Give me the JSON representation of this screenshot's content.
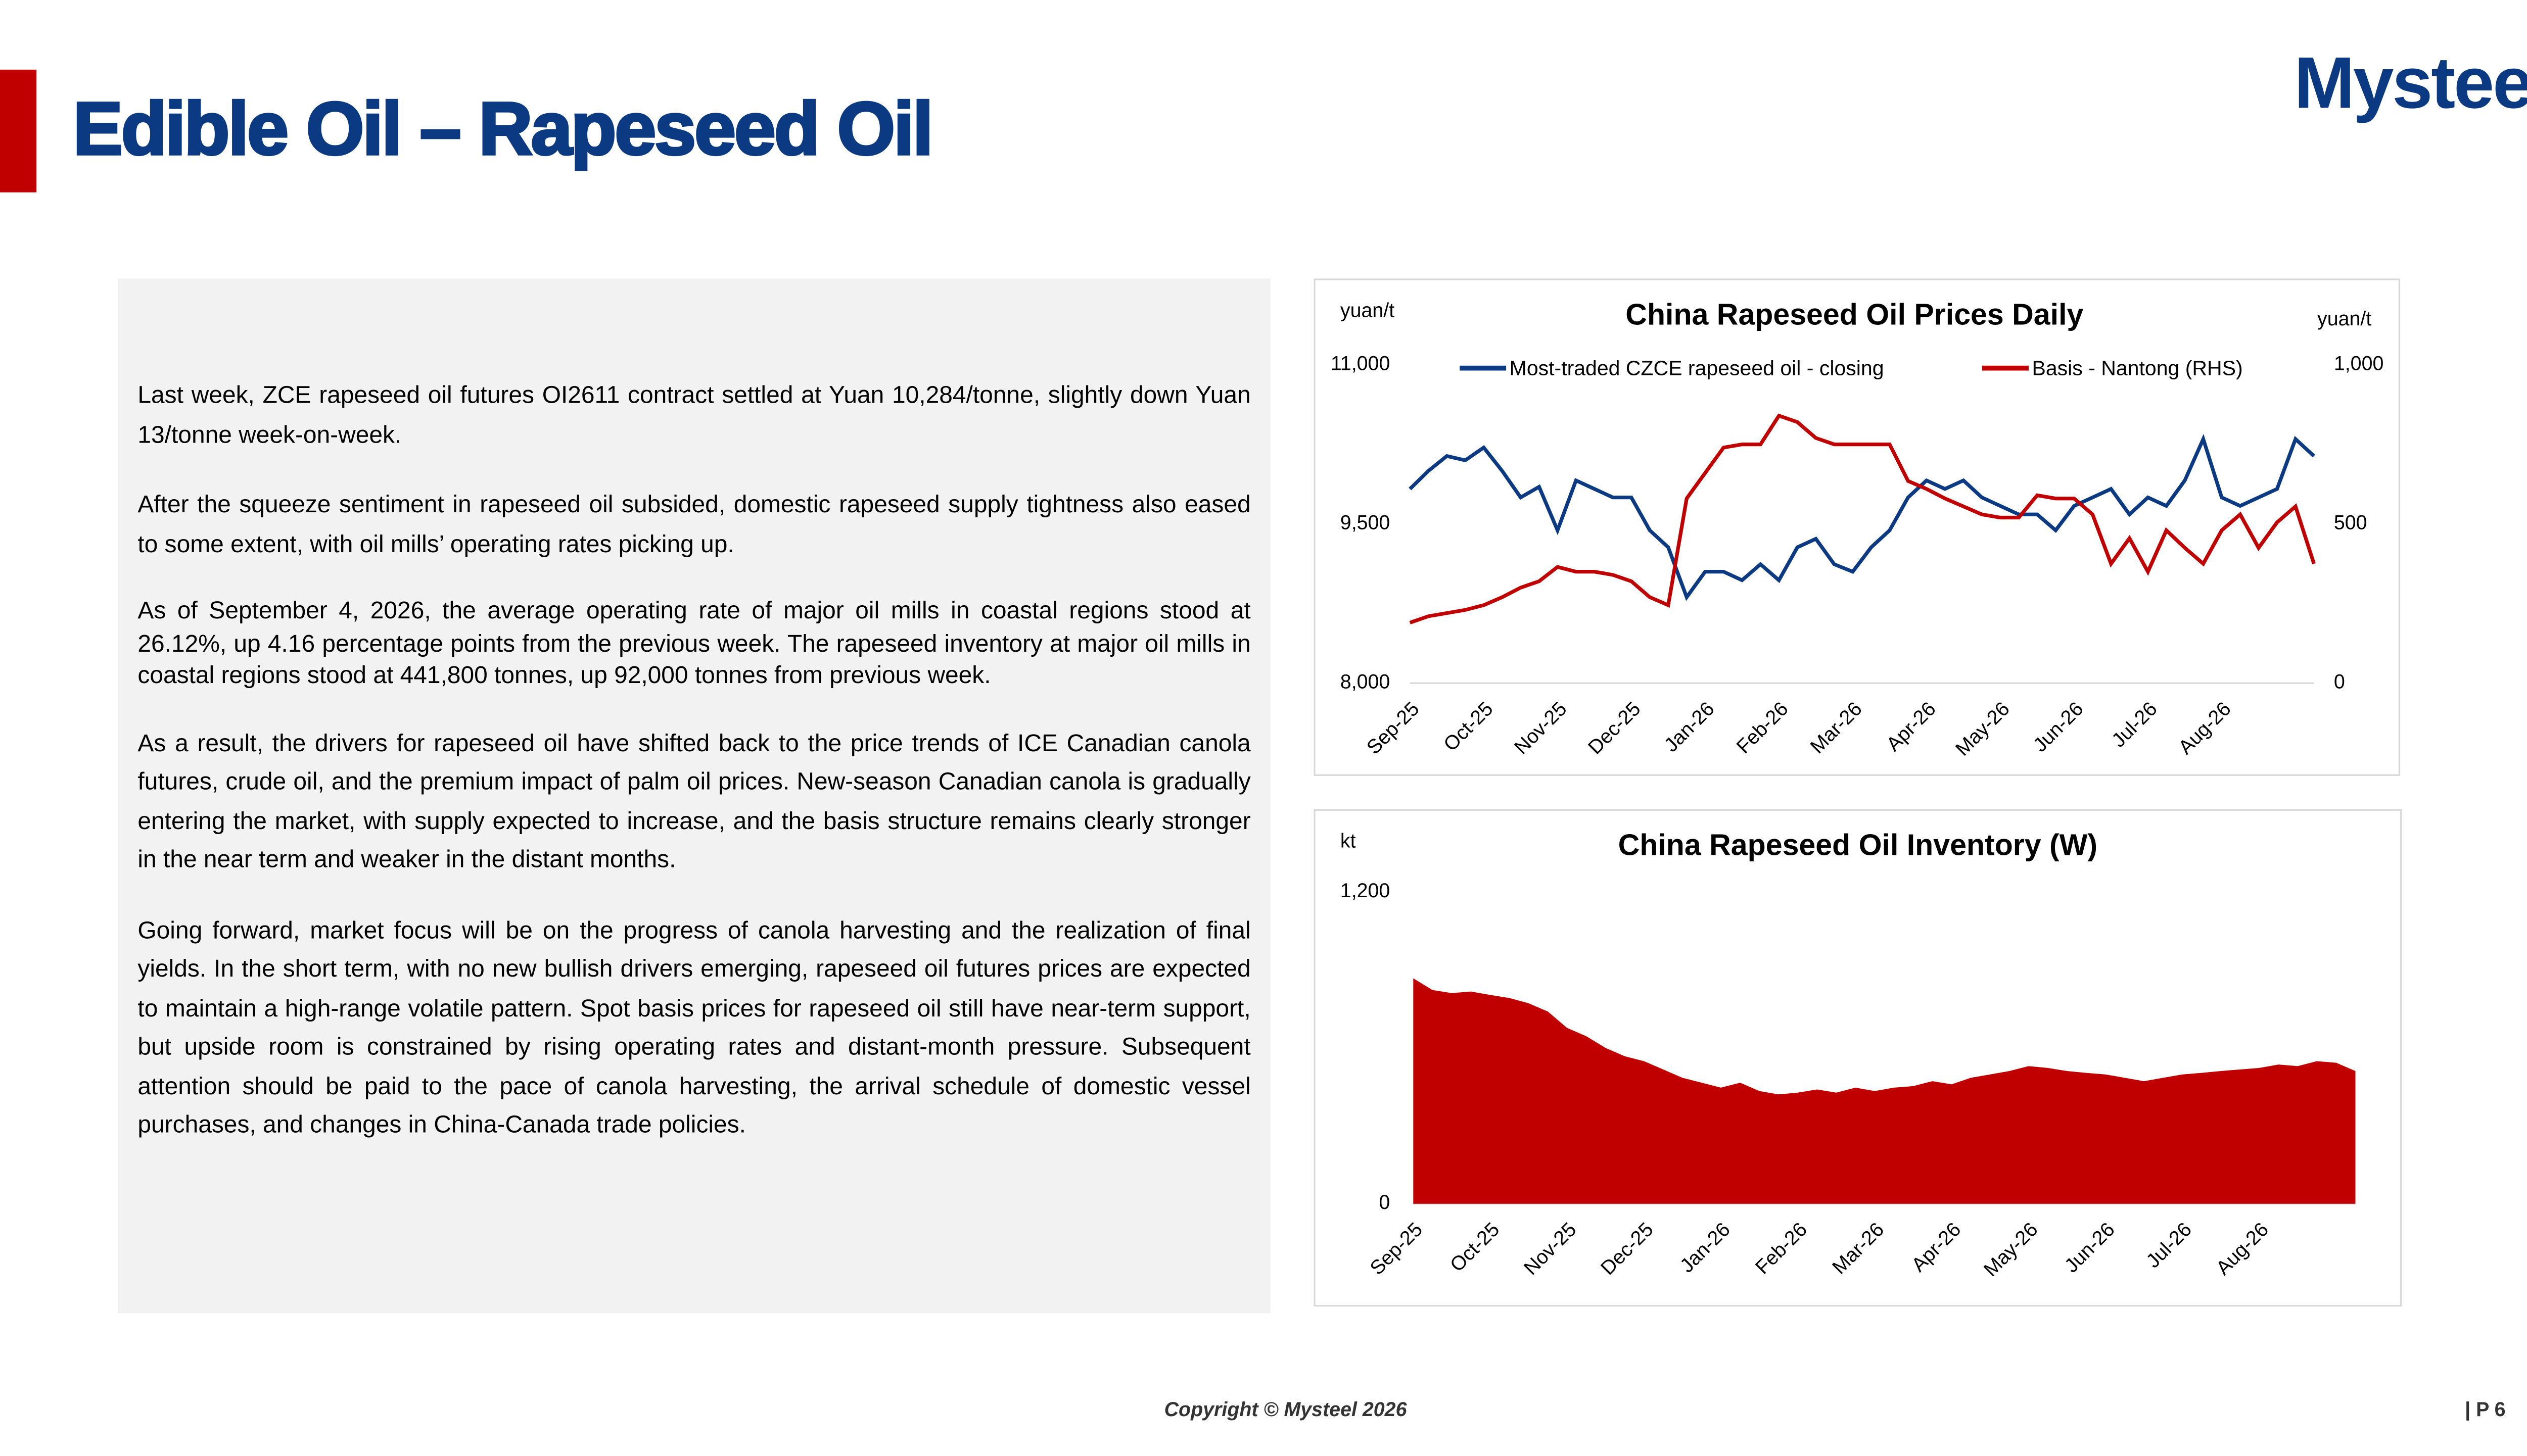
{
  "header": {
    "title": "Edible Oil – Rapeseed Oil",
    "logo": "Mysteel"
  },
  "body": {
    "paragraphs": [
      "Last week, ZCE rapeseed oil futures OI2611 contract settled at Yuan 10,284/tonne, slightly down Yuan 13/tonne week-on-week.",
      "After the squeeze sentiment in rapeseed oil subsided, domestic rapeseed supply tightness also eased to some extent, with oil mills’ operating rates picking up.",
      "As of September 4, 2026, the average operating rate of major oil mills in coastal regions stood at 26.12%, up 4.16 percentage points from the previous week. The rapeseed inventory at major oil mills in coastal regions stood at 441,800 tonnes, up 92,000 tonnes from previous week.",
      "As a result, the drivers for rapeseed oil have shifted back to the price trends of ICE Canadian canola futures, crude oil, and the premium impact of palm oil prices. New-season Canadian canola is gradually entering the market, with supply expected to increase, and the basis structure remains clearly stronger in the near term and weaker in the distant months.",
      "Going forward, market focus will be on the progress of canola harvesting and the realization of final yields. In the short term, with no new bullish drivers emerging, rapeseed oil futures prices are expected to maintain a high-range volatile pattern. Spot basis prices for rapeseed oil still have near-term support, but upside room is constrained by rising operating rates and distant-month pressure. Subsequent attention should be paid to the pace of canola harvesting, the arrival schedule of domestic vessel purchases, and changes in China-Canada trade policies."
    ]
  },
  "footer": {
    "copyright": "Copyright © Mysteel 2026",
    "page": "| P 6"
  },
  "chart_data": [
    {
      "type": "line",
      "title": "China Rapeseed Oil Prices Daily",
      "y_label": "yuan/t",
      "y2_label": "yuan/t",
      "categories": [
        "Sep-25",
        null,
        null,
        null,
        "Oct-25",
        null,
        null,
        null,
        "Nov-25",
        null,
        null,
        null,
        "Dec-25",
        null,
        null,
        null,
        "Jan-26",
        null,
        null,
        null,
        "Feb-26",
        null,
        null,
        null,
        "Mar-26",
        null,
        null,
        null,
        "Apr-26",
        null,
        null,
        null,
        "May-26",
        null,
        null,
        null,
        "Jun-26",
        null,
        null,
        null,
        "Jul-26",
        null,
        null,
        null,
        "Aug-26",
        null,
        null,
        null,
        null,
        null
      ],
      "series": [
        {
          "name": "Most-traded CZCE rapeseed oil - closing",
          "color": "#0b3a82",
          "values": [
            9830,
            10000,
            10140,
            10100,
            10220,
            10000,
            9750,
            9850,
            9440,
            9910,
            9830,
            9750,
            9750,
            9440,
            9280,
            8810,
            9050,
            9050,
            8970,
            9120,
            8970,
            9280,
            9360,
            9120,
            9050,
            9280,
            9440,
            9750,
            9910,
            9830,
            9910,
            9750,
            9670,
            9590,
            9590,
            9440,
            9670,
            9750,
            9830,
            9590,
            9750,
            9670,
            9910,
            10300,
            9750,
            9670,
            9750,
            9830,
            10300,
            10140
          ]
        },
        {
          "name": "Basis - Nantong (RHS)",
          "color": "#c00000",
          "axis": "y2",
          "values": [
            190,
            210,
            220,
            230,
            245,
            270,
            300,
            320,
            365,
            350,
            350,
            340,
            320,
            270,
            245,
            580,
            660,
            740,
            750,
            750,
            840,
            820,
            770,
            750,
            750,
            750,
            750,
            635,
            610,
            580,
            555,
            530,
            520,
            520,
            590,
            580,
            580,
            530,
            375,
            455,
            350,
            480,
            425,
            375,
            480,
            530,
            425,
            505,
            555,
            375
          ]
        }
      ],
      "ylim": [
        8000,
        11000
      ],
      "yticks": [
        {
          "value": 8000,
          "label": "8,000"
        },
        {
          "value": 9500,
          "label": "9,500"
        },
        {
          "value": 11000,
          "label": "11,000"
        }
      ],
      "y2lim": [
        0,
        1000
      ],
      "y2ticks": [
        0,
        500,
        {
          "value": 1000,
          "label": "1,000"
        }
      ]
    },
    {
      "type": "area",
      "title": "China Rapeseed Oil Inventory (W)",
      "y_label": "kt",
      "categories": [
        "Sep-25",
        null,
        null,
        null,
        "Oct-25",
        null,
        null,
        null,
        "Nov-25",
        null,
        null,
        null,
        "Dec-25",
        null,
        null,
        null,
        "Jan-26",
        null,
        null,
        null,
        "Feb-26",
        null,
        null,
        null,
        "Mar-26",
        null,
        null,
        null,
        "Apr-26",
        null,
        null,
        null,
        "May-26",
        null,
        null,
        null,
        "Jun-26",
        null,
        null,
        null,
        "Jul-26",
        null,
        null,
        null,
        "Aug-26",
        null,
        null,
        null,
        null,
        null
      ],
      "color": "#c00000",
      "values": [
        868,
        823,
        811,
        817,
        804,
        792,
        772,
        740,
        677,
        645,
        600,
        568,
        549,
        517,
        485,
        466,
        447,
        466,
        434,
        421,
        428,
        440,
        428,
        447,
        434,
        447,
        453,
        472,
        460,
        485,
        498,
        511,
        530,
        523,
        511,
        504,
        498,
        485,
        472,
        485,
        498,
        504,
        511,
        517,
        523,
        536,
        530,
        549,
        543,
        511
      ],
      "ylim": [
        0,
        1200
      ],
      "yticks": [
        0,
        {
          "value": 1200,
          "label": "1,200"
        }
      ]
    }
  ]
}
